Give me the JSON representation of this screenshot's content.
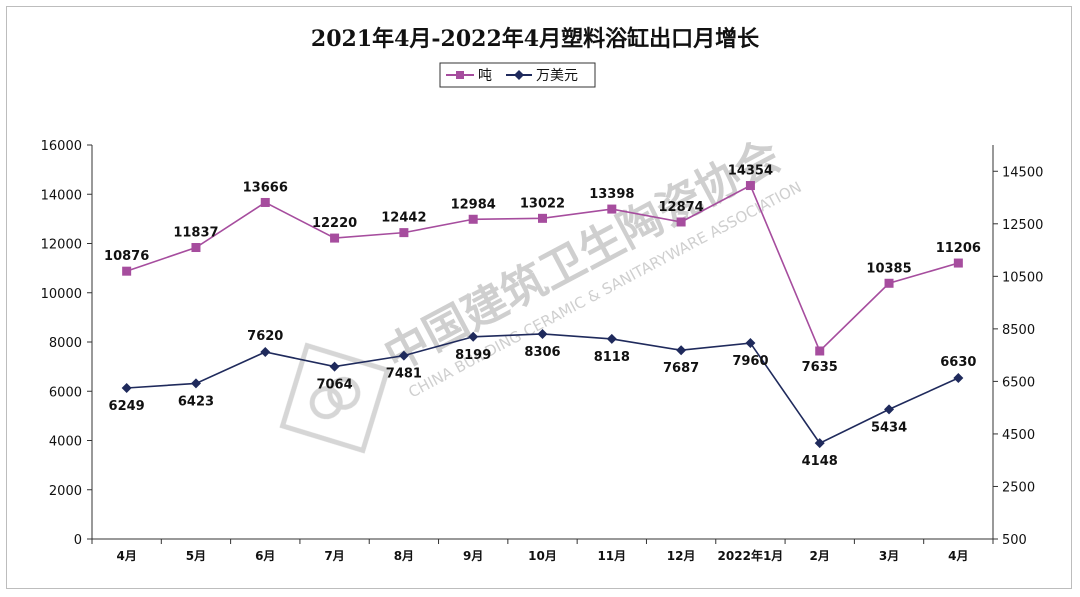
{
  "chart_data": {
    "type": "line",
    "title": "2021年4月-2022年4月塑料浴缸出口月增长",
    "categories": [
      "4月",
      "5月",
      "6月",
      "7月",
      "8月",
      "9月",
      "10月",
      "11月",
      "12月",
      "2022年1月",
      "2月",
      "3月",
      "4月"
    ],
    "series": [
      {
        "name": "吨",
        "axis": "left",
        "color": "#a64d9e",
        "marker": "square",
        "values": [
          10876,
          11837,
          13666,
          12220,
          12442,
          12984,
          13022,
          13398,
          12874,
          14354,
          7635,
          10385,
          11206
        ]
      },
      {
        "name": "万美元",
        "axis": "right",
        "color": "#1f2a5c",
        "marker": "diamond",
        "values": [
          6249,
          6423,
          7620,
          7064,
          7481,
          8199,
          8306,
          8118,
          7687,
          7960,
          4148,
          5434,
          6630
        ]
      }
    ],
    "y_left": {
      "min": 0,
      "max": 16000,
      "step": 2000
    },
    "y_right": {
      "min": 500,
      "max": 15500,
      "ticks": [
        500,
        2500,
        4500,
        6500,
        8500,
        10500,
        12500,
        14500
      ]
    },
    "grid": false,
    "legend": "top-center"
  },
  "watermark": {
    "cn": "中国建筑卫生陶瓷协会",
    "en": "CHINA BUILDING CERAMIC & SANITARYWARE ASSOCIATION"
  }
}
